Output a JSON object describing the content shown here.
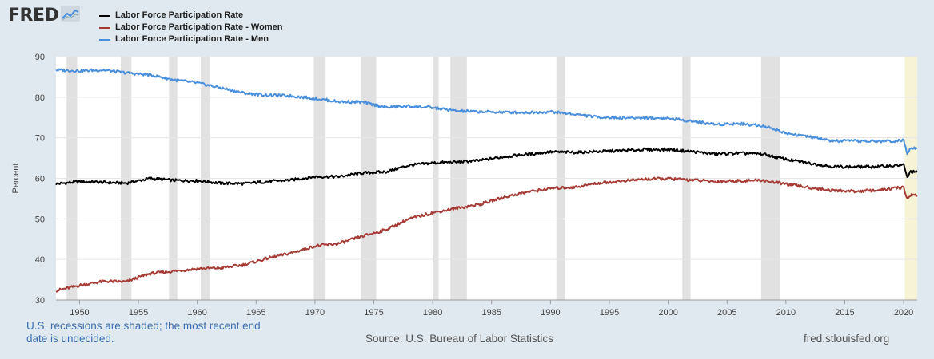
{
  "brand": {
    "logo_text": "FRED",
    "logo_icon": "line-chart-icon"
  },
  "legend": [
    {
      "label": "Labor Force Participation Rate",
      "color": "#000000"
    },
    {
      "label": "Labor Force Participation Rate - Women",
      "color": "#a63a34"
    },
    {
      "label": "Labor Force Participation Rate - Men",
      "color": "#4a8fdc"
    }
  ],
  "footer": {
    "recession_note": "U.S. recessions are shaded; the most recent end date is undecided.",
    "source": "Source: U.S. Bureau of Labor Statistics",
    "url": "fred.stlouisfed.org"
  },
  "chart_data": {
    "type": "line",
    "ylabel": "Percent",
    "xlabel": "",
    "ylim": [
      30,
      90
    ],
    "xlim": [
      1948,
      2021.15
    ],
    "yticks": [
      30,
      40,
      50,
      60,
      70,
      80,
      90
    ],
    "xticks": [
      1950,
      1955,
      1960,
      1965,
      1970,
      1975,
      1980,
      1985,
      1990,
      1995,
      2000,
      2005,
      2010,
      2015,
      2020
    ],
    "grid": true,
    "legend_position": "top-left",
    "recessions": [
      [
        1948.9,
        1949.8
      ],
      [
        1953.5,
        1954.4
      ],
      [
        1957.6,
        1958.3
      ],
      [
        1960.3,
        1961.1
      ],
      [
        1969.9,
        1970.9
      ],
      [
        1973.9,
        1975.2
      ],
      [
        1980.0,
        1980.5
      ],
      [
        1981.5,
        1982.9
      ],
      [
        1990.5,
        1991.2
      ],
      [
        2001.2,
        2001.9
      ],
      [
        2007.9,
        2009.5
      ]
    ],
    "recession_undecided": [
      2020.1,
      2021.15
    ],
    "series": [
      {
        "name": "Labor Force Participation Rate",
        "color": "#000000",
        "points": [
          [
            1948.0,
            58.6
          ],
          [
            1950,
            59.2
          ],
          [
            1952,
            59.0
          ],
          [
            1954,
            58.8
          ],
          [
            1955,
            59.4
          ],
          [
            1956,
            60.0
          ],
          [
            1958,
            59.5
          ],
          [
            1960,
            59.4
          ],
          [
            1962,
            58.8
          ],
          [
            1964,
            58.7
          ],
          [
            1966,
            59.2
          ],
          [
            1968,
            59.6
          ],
          [
            1970,
            60.4
          ],
          [
            1972,
            60.4
          ],
          [
            1974,
            61.3
          ],
          [
            1976,
            61.6
          ],
          [
            1978,
            63.2
          ],
          [
            1980,
            63.8
          ],
          [
            1982,
            64.0
          ],
          [
            1984,
            64.4
          ],
          [
            1986,
            65.3
          ],
          [
            1988,
            65.9
          ],
          [
            1990,
            66.5
          ],
          [
            1992,
            66.4
          ],
          [
            1994,
            66.6
          ],
          [
            1996,
            66.8
          ],
          [
            1998,
            67.1
          ],
          [
            2000,
            67.1
          ],
          [
            2002,
            66.6
          ],
          [
            2004,
            66.0
          ],
          [
            2006,
            66.2
          ],
          [
            2008,
            66.0
          ],
          [
            2010,
            64.7
          ],
          [
            2012,
            63.7
          ],
          [
            2014,
            62.9
          ],
          [
            2016,
            62.8
          ],
          [
            2018,
            62.9
          ],
          [
            2020.0,
            63.3
          ],
          [
            2020.3,
            60.2
          ],
          [
            2020.6,
            61.7
          ],
          [
            2021.15,
            61.5
          ]
        ]
      },
      {
        "name": "Labor Force Participation Rate - Women",
        "color": "#a63a34",
        "points": [
          [
            1948.0,
            32.3
          ],
          [
            1950,
            33.6
          ],
          [
            1952,
            34.6
          ],
          [
            1954,
            34.5
          ],
          [
            1955,
            35.6
          ],
          [
            1956,
            36.5
          ],
          [
            1958,
            37.1
          ],
          [
            1960,
            37.7
          ],
          [
            1962,
            37.9
          ],
          [
            1964,
            38.7
          ],
          [
            1966,
            40.3
          ],
          [
            1968,
            41.6
          ],
          [
            1970,
            43.3
          ],
          [
            1972,
            43.9
          ],
          [
            1974,
            45.7
          ],
          [
            1976,
            47.3
          ],
          [
            1978,
            50.0
          ],
          [
            1980,
            51.5
          ],
          [
            1982,
            52.6
          ],
          [
            1984,
            53.6
          ],
          [
            1986,
            55.3
          ],
          [
            1988,
            56.6
          ],
          [
            1990,
            57.5
          ],
          [
            1992,
            57.8
          ],
          [
            1994,
            58.8
          ],
          [
            1996,
            59.3
          ],
          [
            1998,
            59.8
          ],
          [
            2000,
            59.9
          ],
          [
            2002,
            59.6
          ],
          [
            2004,
            59.2
          ],
          [
            2006,
            59.4
          ],
          [
            2008,
            59.5
          ],
          [
            2010,
            58.6
          ],
          [
            2012,
            57.7
          ],
          [
            2014,
            57.0
          ],
          [
            2016,
            56.8
          ],
          [
            2018,
            57.1
          ],
          [
            2020.0,
            57.8
          ],
          [
            2020.3,
            54.8
          ],
          [
            2020.6,
            56.0
          ],
          [
            2021.15,
            55.8
          ]
        ]
      },
      {
        "name": "Labor Force Participation Rate - Men",
        "color": "#4a8fdc",
        "points": [
          [
            1948.0,
            86.7
          ],
          [
            1950,
            86.5
          ],
          [
            1952,
            86.7
          ],
          [
            1954,
            86.0
          ],
          [
            1955,
            85.7
          ],
          [
            1956,
            85.5
          ],
          [
            1958,
            84.3
          ],
          [
            1960,
            83.5
          ],
          [
            1962,
            82.3
          ],
          [
            1964,
            81.0
          ],
          [
            1966,
            80.5
          ],
          [
            1968,
            80.3
          ],
          [
            1970,
            79.7
          ],
          [
            1972,
            78.9
          ],
          [
            1974,
            78.8
          ],
          [
            1976,
            77.5
          ],
          [
            1978,
            77.8
          ],
          [
            1980,
            77.4
          ],
          [
            1982,
            76.6
          ],
          [
            1984,
            76.4
          ],
          [
            1986,
            76.3
          ],
          [
            1988,
            76.2
          ],
          [
            1990,
            76.4
          ],
          [
            1992,
            75.8
          ],
          [
            1994,
            75.1
          ],
          [
            1996,
            74.9
          ],
          [
            1998,
            74.9
          ],
          [
            2000,
            74.8
          ],
          [
            2002,
            74.1
          ],
          [
            2004,
            73.3
          ],
          [
            2006,
            73.5
          ],
          [
            2008,
            73.0
          ],
          [
            2010,
            71.2
          ],
          [
            2012,
            70.2
          ],
          [
            2014,
            69.2
          ],
          [
            2016,
            69.2
          ],
          [
            2018,
            69.1
          ],
          [
            2020.0,
            69.3
          ],
          [
            2020.3,
            66.3
          ],
          [
            2020.6,
            67.6
          ],
          [
            2021.15,
            67.5
          ]
        ]
      }
    ]
  }
}
